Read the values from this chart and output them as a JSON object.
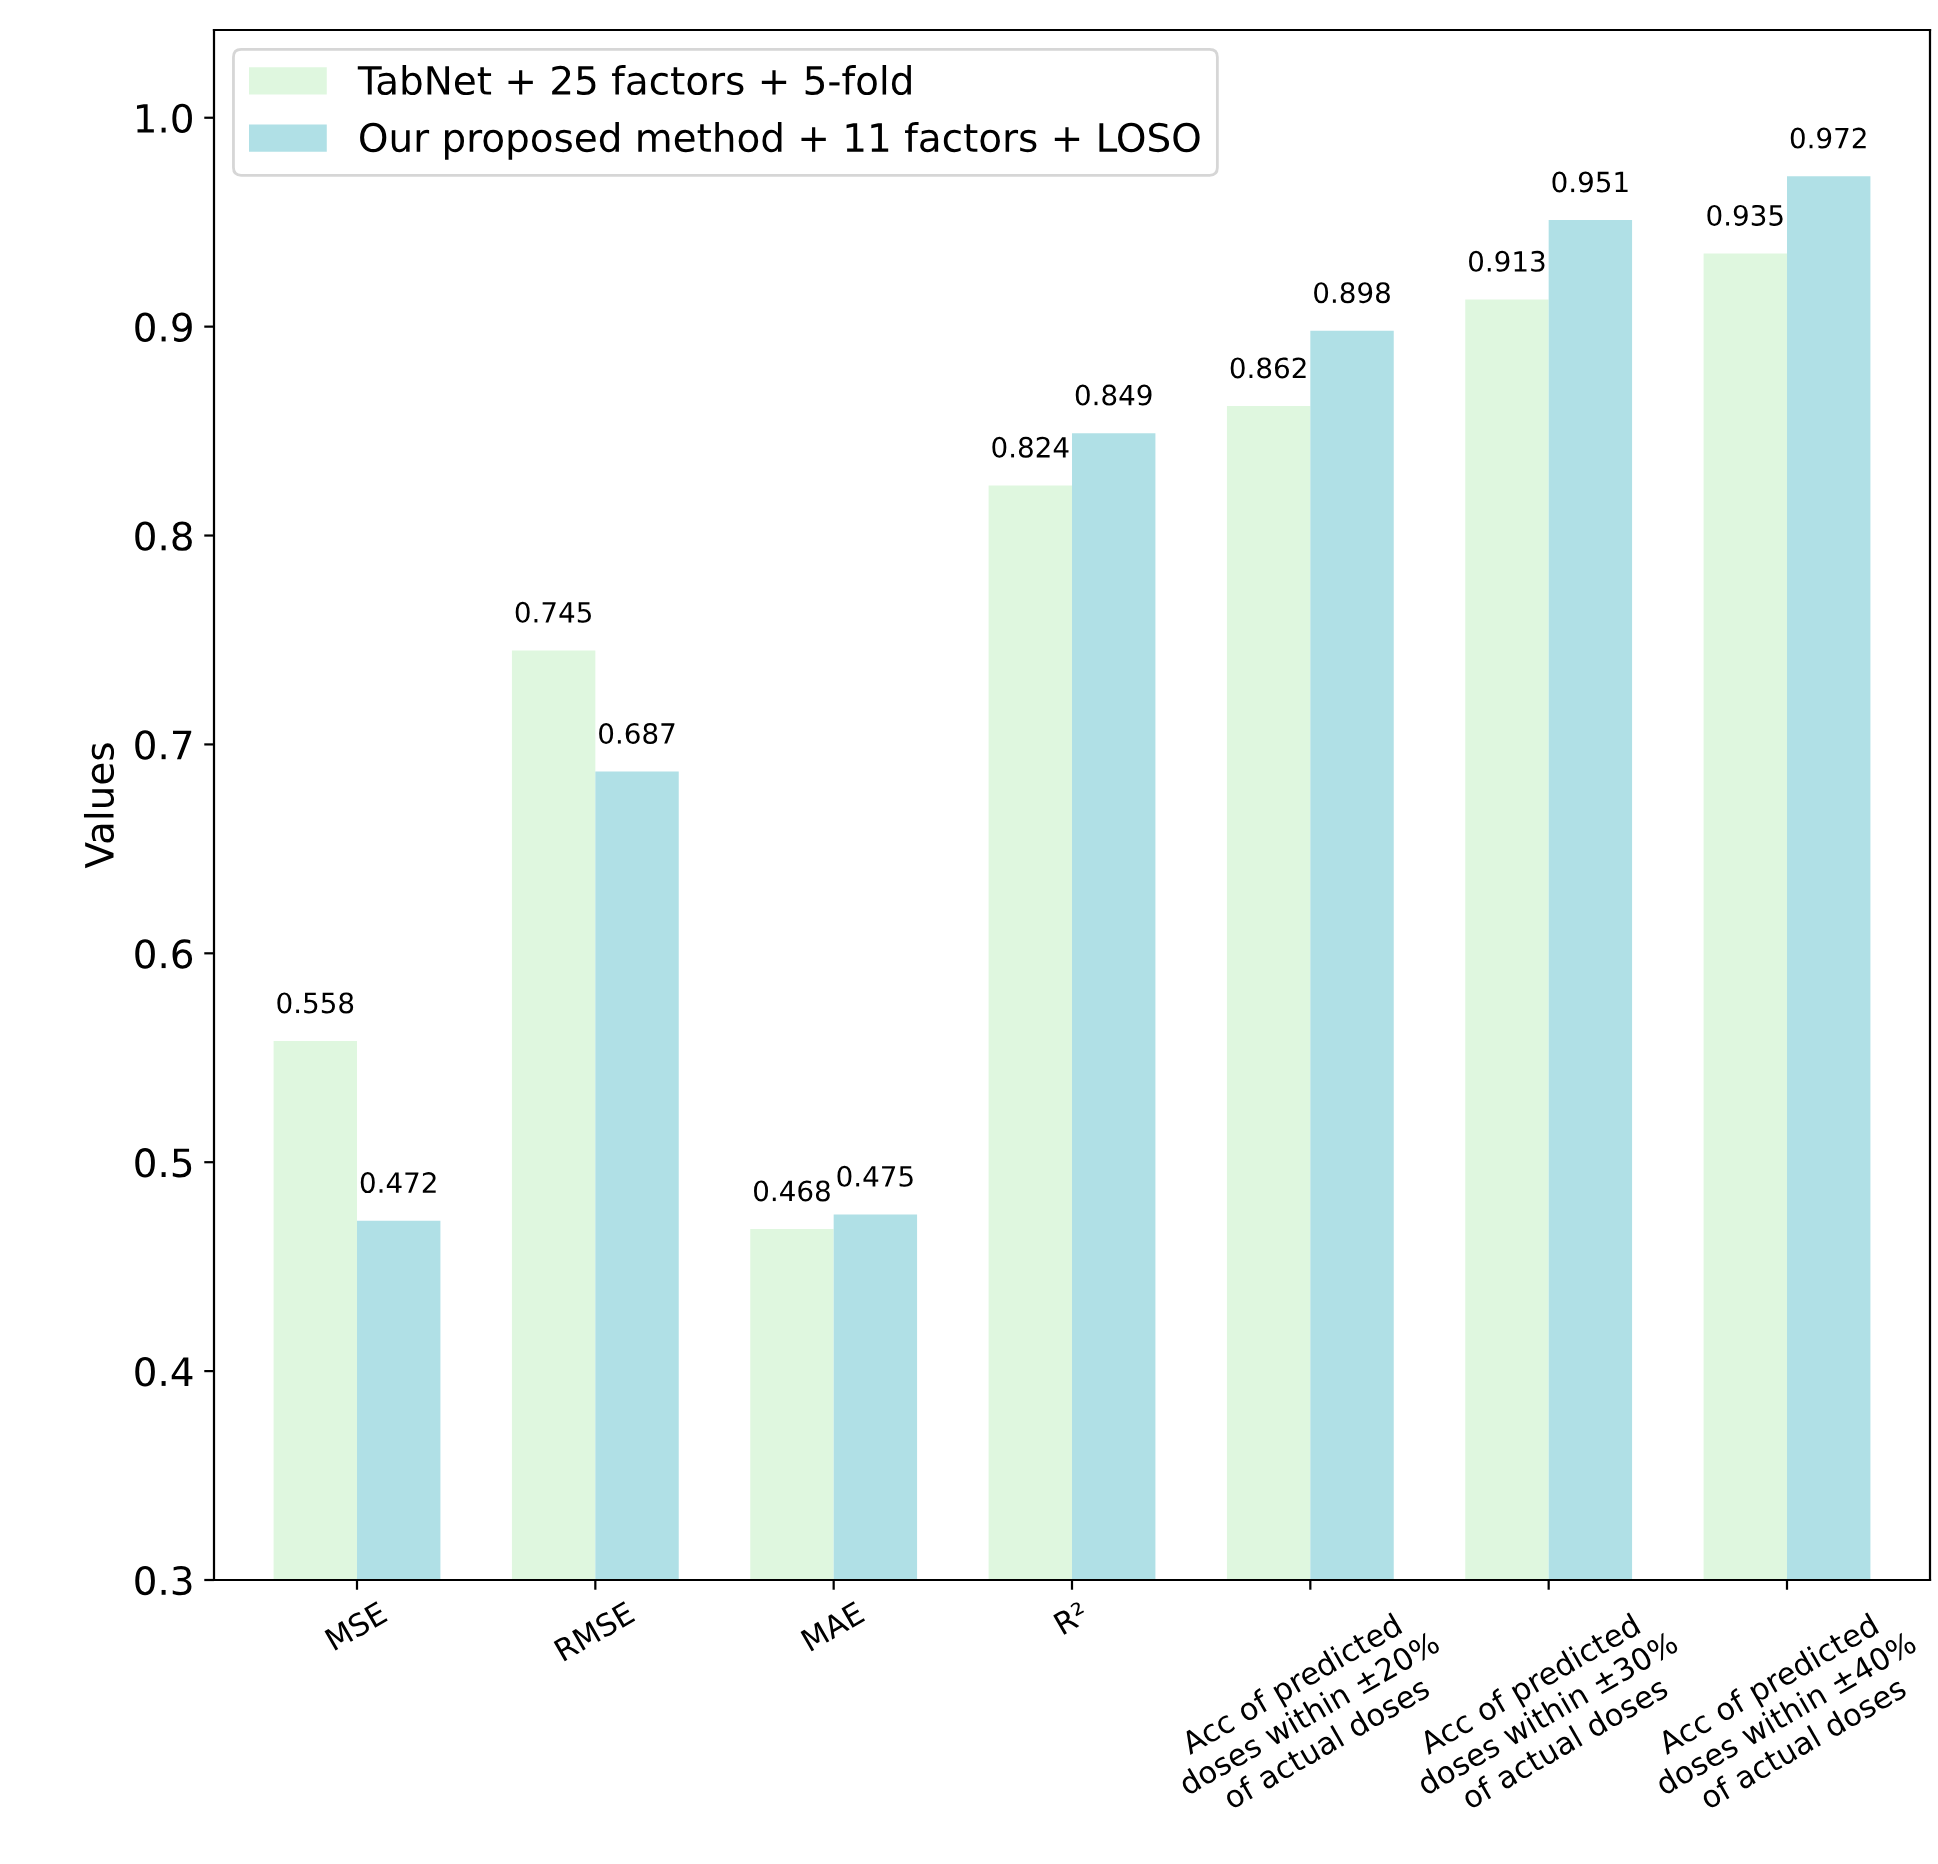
{
  "chart_data": {
    "type": "bar",
    "ylabel": "Values",
    "categories": [
      "MSE",
      "RMSE",
      "MAE",
      "R²",
      "Acc of predicted\ndoses within ±20%\nof actual doses",
      "Acc of predicted\ndoses within ±30%\nof actual doses",
      "Acc of predicted\ndoses within ±40%\nof actual doses"
    ],
    "series": [
      {
        "name": "TabNet + 25 factors + 5-fold",
        "color": "#dff7df",
        "values": [
          0.558,
          0.745,
          0.468,
          0.824,
          0.862,
          0.913,
          0.935
        ]
      },
      {
        "name": "Our proposed method + 11 factors + LOSO",
        "color": "#b0e0e6",
        "values": [
          0.472,
          0.687,
          0.475,
          0.849,
          0.898,
          0.951,
          0.972
        ]
      }
    ],
    "ylim": [
      0.3,
      1.042
    ],
    "yticks": [
      0.3,
      0.4,
      0.5,
      0.6,
      0.7,
      0.8,
      0.9,
      {
        "value": 1,
        "label": "1.0"
      }
    ],
    "data_labels": true,
    "legend": "top left",
    "grid": false
  }
}
